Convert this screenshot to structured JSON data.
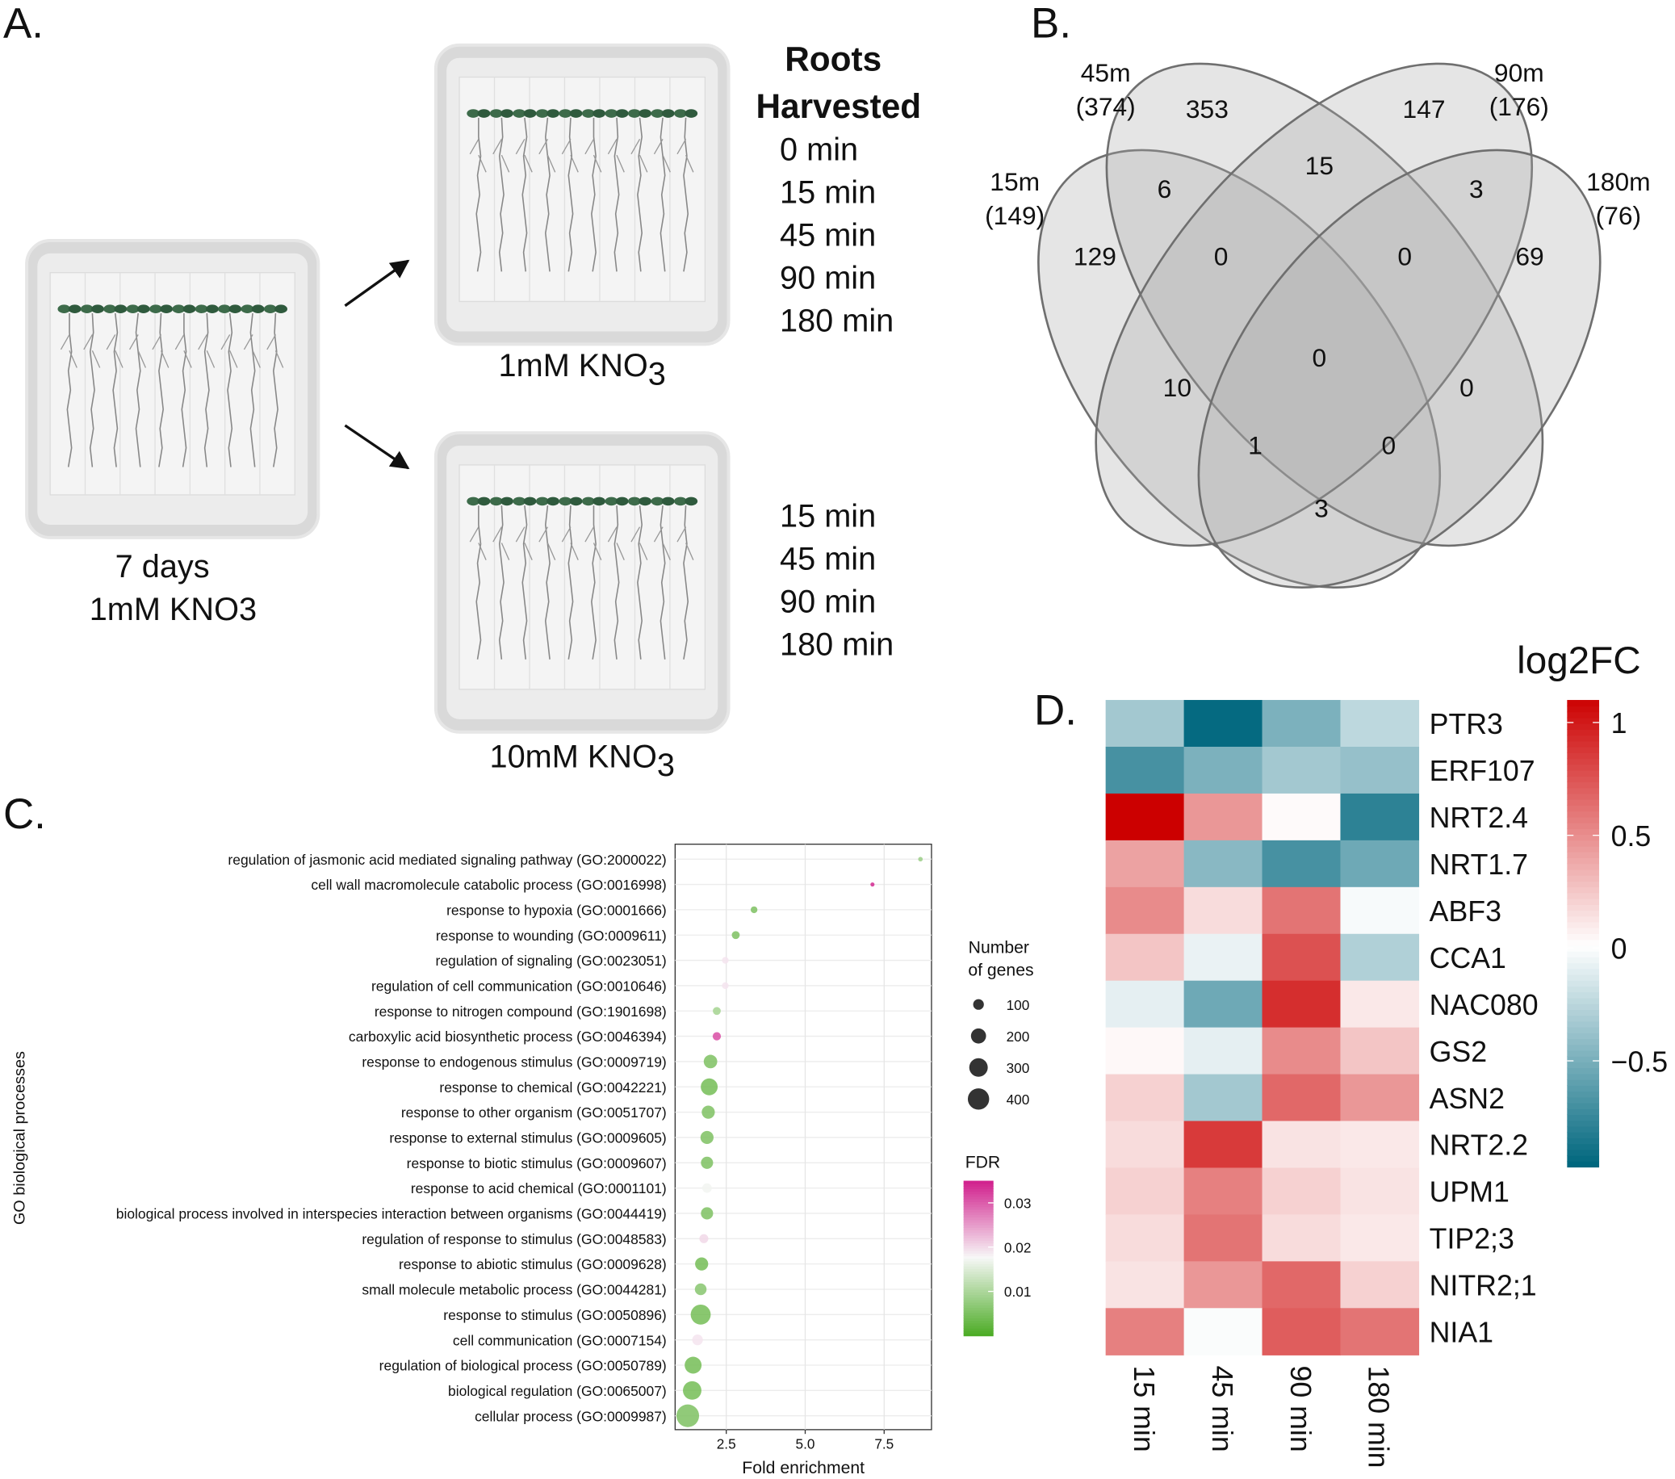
{
  "panel_labels": [
    "A.",
    "B.",
    "C.",
    "D."
  ],
  "experiment": {
    "start_plate": {
      "lines": [
        "7 days",
        "1mM KNO3"
      ]
    },
    "harvest_title": [
      "Roots",
      "Harvested"
    ],
    "plates": [
      {
        "label": {
          "text": "1mM KNO",
          "subscript": "3"
        },
        "times": [
          "0 min",
          "15 min",
          "45 min",
          "90 min",
          "180 min"
        ]
      },
      {
        "label": {
          "text": "10mM KNO",
          "subscript": "3"
        },
        "times": [
          "15 min",
          "45 min",
          "90 min",
          "180 min"
        ]
      }
    ]
  },
  "venn": {
    "sets": [
      {
        "name": "15m",
        "count": "(149)"
      },
      {
        "name": "45m",
        "count": "(374)"
      },
      {
        "name": "90m",
        "count": "(176)"
      },
      {
        "name": "180m",
        "count": "(76)"
      }
    ],
    "regions": [
      353,
      147,
      6,
      15,
      3,
      129,
      0,
      0,
      69,
      0,
      10,
      0,
      1,
      0,
      3
    ]
  },
  "chart_data": [
    {
      "type": "scatter",
      "x_label": "Fold enrichment",
      "y_label": "GO biological processes",
      "categories": [
        "regulation of jasmonic acid mediated signaling pathway (GO:2000022)",
        "cell wall macromolecule catabolic process (GO:0016998)",
        "response to hypoxia (GO:0001666)",
        "response to wounding (GO:0009611)",
        "regulation of signaling (GO:0023051)",
        "regulation of cell communication (GO:0010646)",
        "response to nitrogen compound (GO:1901698)",
        "carboxylic acid biosynthetic process (GO:0046394)",
        "response to endogenous stimulus (GO:0009719)",
        "response to chemical (GO:0042221)",
        "response to other organism (GO:0051707)",
        "response to external stimulus (GO:0009605)",
        "response to biotic stimulus (GO:0009607)",
        "response to acid chemical (GO:0001101)",
        "biological process involved in interspecies interaction between organisms (GO:0044419)",
        "regulation of response to stimulus (GO:0048583)",
        "response to abiotic stimulus (GO:0009628)",
        "small molecule metabolic process (GO:0044281)",
        "response to stimulus (GO:0050896)",
        "cell communication (GO:0007154)",
        "regulation of biological process (GO:0050789)",
        "biological regulation (GO:0065007)",
        "cellular process (GO:0009987)"
      ],
      "x": [
        8.65,
        7.13,
        3.38,
        2.8,
        2.47,
        2.47,
        2.2,
        2.2,
        2.0,
        1.96,
        1.93,
        1.89,
        1.89,
        1.89,
        1.89,
        1.79,
        1.72,
        1.69,
        1.69,
        1.59,
        1.45,
        1.42,
        1.28
      ],
      "sizes": [
        18,
        15,
        40,
        55,
        40,
        40,
        55,
        60,
        160,
        250,
        150,
        150,
        130,
        80,
        130,
        70,
        150,
        120,
        350,
        100,
        250,
        300,
        450
      ],
      "fdr": [
        0.008,
        0.034,
        0.005,
        0.005,
        0.019,
        0.019,
        0.009,
        0.031,
        0.005,
        0.004,
        0.005,
        0.005,
        0.005,
        0.017,
        0.005,
        0.02,
        0.004,
        0.006,
        0.004,
        0.019,
        0.004,
        0.004,
        0.005
      ],
      "xlim": [
        0.88,
        9.0
      ],
      "xticks": [
        2.5,
        {
          "value": 5,
          "label": "5.0"
        },
        7.5
      ],
      "grid": true,
      "size_legend": {
        "title": [
          "Number",
          "of genes"
        ],
        "values": [
          100,
          200,
          300,
          400
        ]
      },
      "color_legend": {
        "title": "FDR",
        "lim": [
          0,
          0.035
        ],
        "ticks": [
          0.01,
          0.02,
          0.03
        ],
        "colors": [
          "#4dac26",
          "#f7f7f7",
          "#d01c8b"
        ]
      }
    },
    {
      "type": "heatmap",
      "legend_title": "log2FC",
      "rows": [
        "PTR3",
        "ERF107",
        "NRT2.4",
        "NRT1.7",
        "ABF3",
        "CCA1",
        "NAC080",
        "GS2",
        "ASN2",
        "NRT2.2",
        "UPM1",
        "TIP2;3",
        "NITR2;1",
        "NIA1"
      ],
      "columns": [
        "15 min",
        "45 min",
        "90 min",
        "180 min"
      ],
      "values": [
        [
          -0.35,
          -0.95,
          -0.5,
          -0.25
        ],
        [
          -0.7,
          -0.5,
          -0.35,
          -0.4
        ],
        [
          1.1,
          0.45,
          0.02,
          -0.8
        ],
        [
          0.4,
          -0.45,
          -0.7,
          -0.55
        ],
        [
          0.5,
          0.15,
          0.6,
          -0.03
        ],
        [
          0.25,
          -0.08,
          0.75,
          -0.3
        ],
        [
          -0.1,
          -0.55,
          0.9,
          0.1
        ],
        [
          0.03,
          -0.1,
          0.5,
          0.25
        ],
        [
          0.2,
          -0.35,
          0.65,
          0.45
        ],
        [
          0.15,
          0.85,
          0.12,
          0.1
        ],
        [
          0.2,
          0.55,
          0.2,
          0.12
        ],
        [
          0.15,
          0.6,
          0.15,
          0.1
        ],
        [
          0.12,
          0.45,
          0.65,
          0.2
        ],
        [
          0.55,
          -0.02,
          0.7,
          0.6
        ]
      ],
      "color_lim": [
        -0.97,
        1.1
      ],
      "colorbar_ticks": [
        1,
        0.5,
        0,
        {
          "value": -0.5,
          "label": "−0.5"
        }
      ],
      "colors": [
        "#00677e",
        "#ffffff",
        "#cc0000"
      ]
    }
  ]
}
